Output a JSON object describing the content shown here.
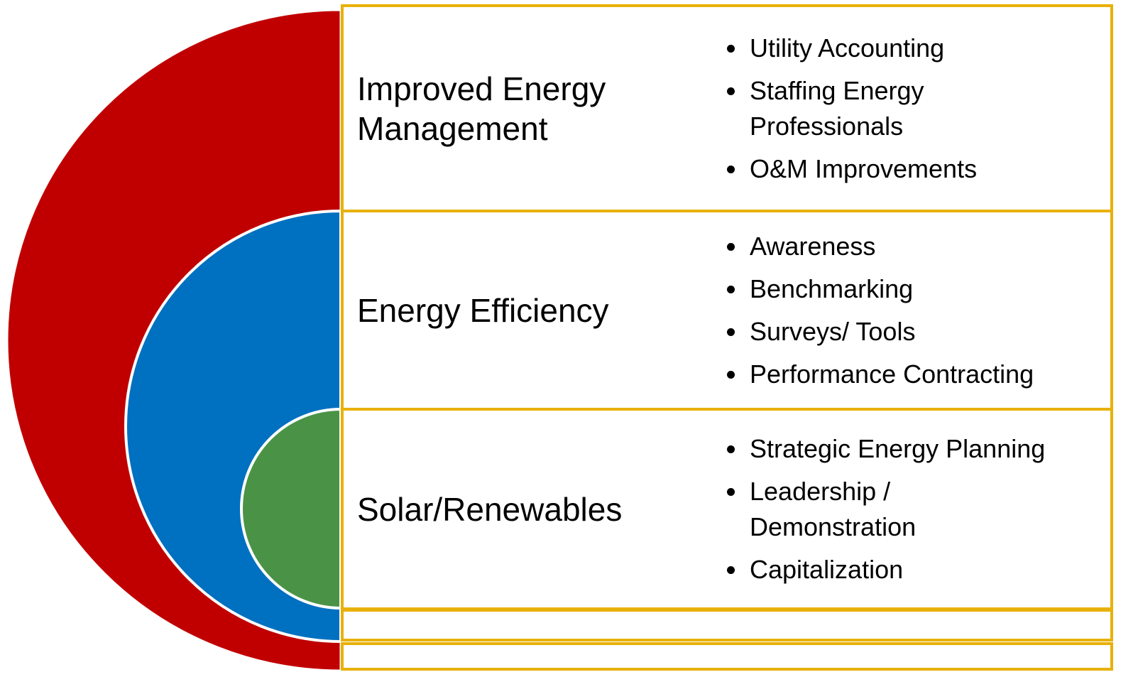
{
  "rows": [
    {
      "title": "Improved Energy\nManagement",
      "items": [
        "Utility Accounting",
        "Staffing Energy\nProfessionals",
        "O&M Improvements"
      ]
    },
    {
      "title": "Energy Efficiency",
      "items": [
        "Awareness",
        "Benchmarking",
        "Surveys/ Tools",
        "Performance Contracting"
      ]
    },
    {
      "title": "Solar/Renewables",
      "items": [
        "Strategic Energy Planning",
        "Leadership /\nDemonstration",
        "Capitalization"
      ]
    }
  ]
}
